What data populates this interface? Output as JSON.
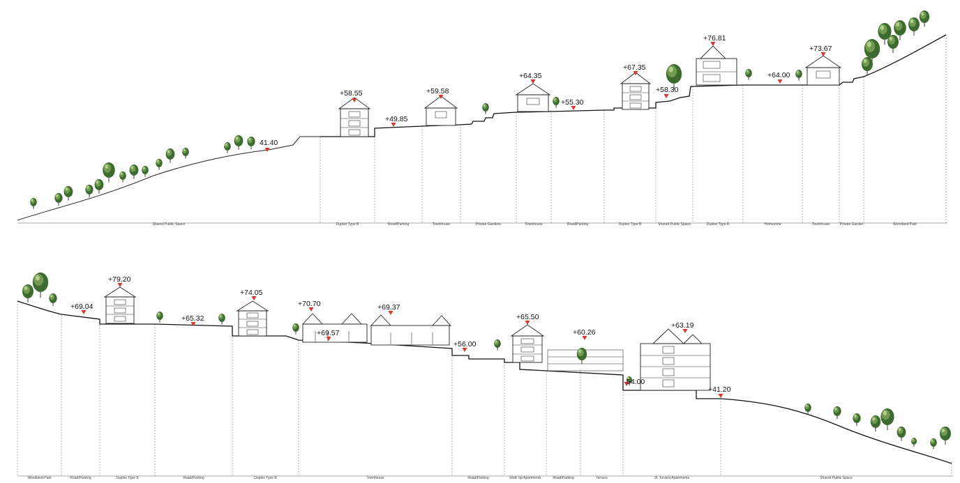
{
  "colors": {
    "marker": "#d9372b",
    "tree_dark": "#3d6b2f",
    "tree_mid": "#6f9a4f",
    "tree_light": "#b4cf8c",
    "line": "#111111"
  },
  "section_1": {
    "elevations": [
      "41.40",
      "+58.55",
      "+49.85",
      "+59.58",
      "+64.35",
      "+55.30",
      "+67.35",
      "+58.30",
      "+76.81",
      "+64.00",
      "+73.67"
    ],
    "zones": [
      "Shared Public Space",
      "Duplex Type B",
      "Road/Parking",
      "Townhouse",
      "Private Gardens",
      "Townhouse",
      "Road/Parking",
      "Duplex Type B",
      "Shared Public Space",
      "Duplex Type A",
      "Homezone",
      "Townhouse",
      "Private Garden",
      "Woodland Park"
    ]
  },
  "section_2": {
    "elevations": [
      "+79.20",
      "+69.04",
      "+65.32",
      "+74.05",
      "+70.70",
      "+69.37",
      "+69.57",
      "+65.50",
      "+56.00",
      "+60.26",
      "+63.19",
      "54.00",
      "+41.20"
    ],
    "zones": [
      "Woodland Park",
      "Road/Parking",
      "Duplex Type B",
      "Road/Parking",
      "Duplex Type B",
      "Townhouse",
      "Road/Parking",
      "Walk Up Apartments",
      "Road/Parking",
      "Terrace",
      "St. Kevin's Apartments",
      "Shared Public Space"
    ]
  }
}
